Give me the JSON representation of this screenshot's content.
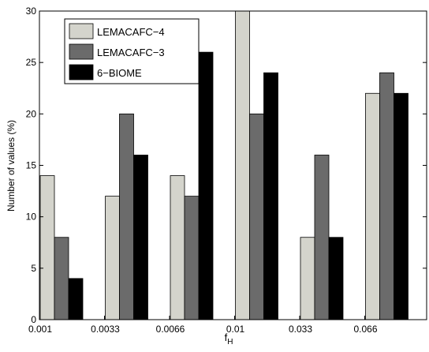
{
  "chart_data": {
    "type": "bar",
    "title": "",
    "xlabel": "f",
    "xlabel_subscript": "H",
    "ylabel": "Number of values (%)",
    "categories": [
      "0.001",
      "0.0033",
      "0.0066",
      "0.01",
      "0.033",
      "0.066"
    ],
    "ylim": [
      0,
      30
    ],
    "yticks": [
      "0",
      "5",
      "10",
      "15",
      "20",
      "25",
      "30"
    ],
    "grid": false,
    "legend_position": "top-left",
    "series": [
      {
        "name": "LEMACAFC−4",
        "color": "#d4d4cc",
        "values": [
          14,
          12,
          14,
          30,
          8,
          22
        ]
      },
      {
        "name": "LEMACAFC−3",
        "color": "#6b6b6b",
        "values": [
          8,
          20,
          12,
          20,
          16,
          24
        ]
      },
      {
        "name": "6−BIOME",
        "color": "#000000",
        "values": [
          4,
          16,
          26,
          24,
          8,
          22
        ]
      }
    ]
  }
}
